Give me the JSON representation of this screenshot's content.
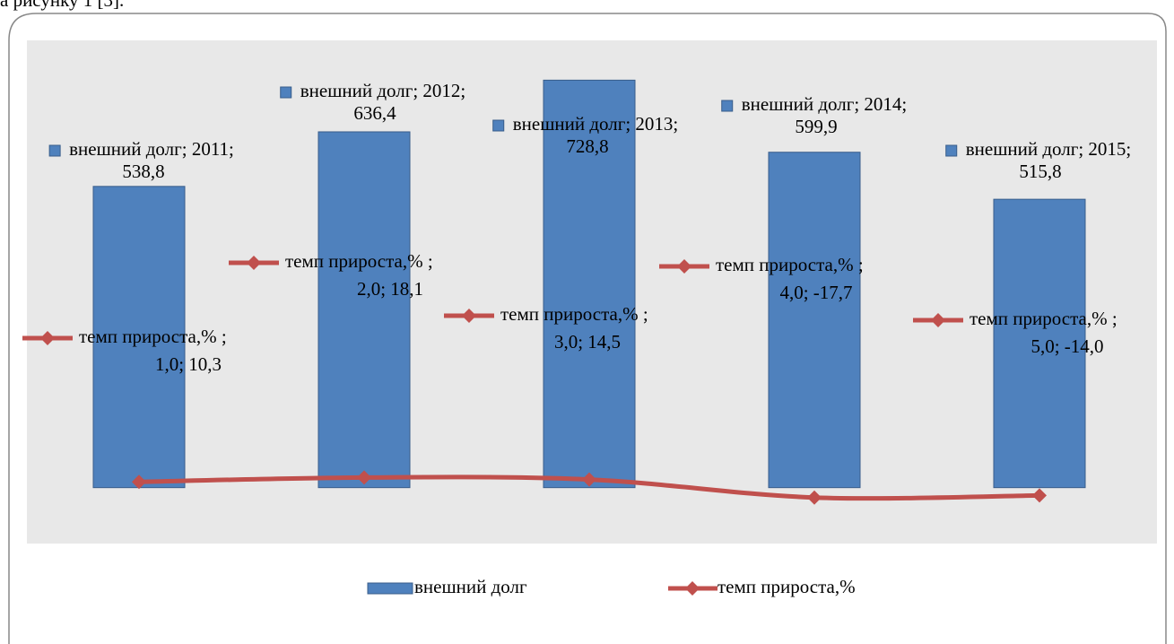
{
  "top_text": "а рисунку 1 [3].",
  "chart_data": {
    "type": "bar",
    "categories": [
      "2011",
      "2012",
      "2013",
      "2014",
      "2015"
    ],
    "ylim": [
      -100,
      800
    ],
    "series": [
      {
        "name": "внешний долг",
        "type": "bar",
        "color": "#4f81bd",
        "values": [
          538.8,
          636.4,
          728.8,
          599.9,
          515.8
        ],
        "value_labels": [
          "внешний долг; 2011; 538,8",
          "внешний долг; 2012; 636,4",
          "внешний долг; 2013; 728,8",
          "внешний долг; 2014; 599,9",
          "внешний долг; 2015; 515,8"
        ]
      },
      {
        "name": "темп прироста,%",
        "type": "line",
        "color": "#c0504d",
        "values": [
          10.3,
          18.1,
          14.5,
          -17.7,
          -14.0
        ],
        "value_labels": [
          "темп прироста,% ; 1,0; 10,3",
          "темп прироста,% ; 2,0; 18,1",
          "темп прироста,% ; 3,0; 14,5",
          "темп прироста,% ; 4,0; -17,7",
          "темп прироста,% ; 5,0; -14,0"
        ]
      }
    ]
  }
}
